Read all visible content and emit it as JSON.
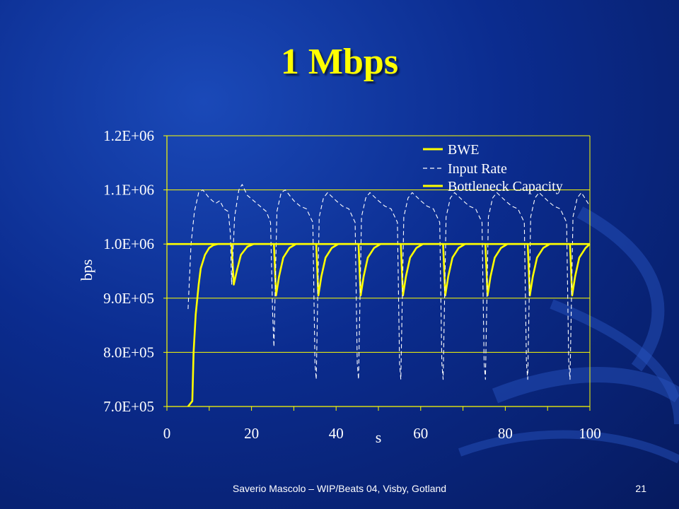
{
  "slide": {
    "title": "1 Mbps",
    "footer": "Saverio Mascolo  –   WIP/Beats 04,  Visby, Gotland",
    "page_number": "21"
  },
  "colors": {
    "background": "#0b2c8f",
    "title": "#ffff00",
    "grid": "#ffff00",
    "axis_text": "#ffffff",
    "bwe": "#ffff00",
    "input_rate": "#ffffff",
    "capacity": "#ffff00"
  },
  "chart_data": {
    "type": "line",
    "title": "",
    "xlabel": "s",
    "ylabel": "bps",
    "xlim": [
      0,
      100
    ],
    "ylim": [
      700000,
      1200000
    ],
    "x_ticks": [
      0,
      20,
      40,
      60,
      80,
      100
    ],
    "x_tick_labels": [
      "0",
      "20",
      "40",
      "60",
      "80",
      "100"
    ],
    "y_ticks": [
      700000,
      800000,
      900000,
      1000000,
      1100000,
      1200000
    ],
    "y_tick_labels": [
      "7.0E+05",
      "8.0E+05",
      "9.0E+05",
      "1.0E+06",
      "1.1E+06",
      "1.2E+06"
    ],
    "grid": "horizontal",
    "legend_position": "top-right",
    "series": [
      {
        "name": "BWE",
        "style": "solid",
        "points": [
          [
            5,
            700000
          ],
          [
            6,
            710000
          ],
          [
            6.3,
            800000
          ],
          [
            6.8,
            870000
          ],
          [
            7.5,
            925000
          ],
          [
            8,
            955000
          ],
          [
            9,
            980000
          ],
          [
            10,
            993000
          ],
          [
            11,
            998000
          ],
          [
            12,
            1000000
          ],
          [
            15.3,
            1000000
          ],
          [
            15.8,
            925000
          ],
          [
            16.5,
            950000
          ],
          [
            17.5,
            980000
          ],
          [
            19,
            995000
          ],
          [
            20.5,
            1000000
          ],
          [
            25.3,
            1000000
          ],
          [
            25.8,
            905000
          ],
          [
            26.5,
            940000
          ],
          [
            27.5,
            975000
          ],
          [
            29,
            993000
          ],
          [
            30.5,
            1000000
          ],
          [
            35.3,
            1000000
          ],
          [
            35.8,
            905000
          ],
          [
            36.5,
            940000
          ],
          [
            37.5,
            975000
          ],
          [
            39,
            993000
          ],
          [
            40.5,
            1000000
          ],
          [
            45.3,
            1000000
          ],
          [
            45.8,
            905000
          ],
          [
            46.5,
            940000
          ],
          [
            47.5,
            975000
          ],
          [
            49,
            993000
          ],
          [
            50.5,
            1000000
          ],
          [
            55.3,
            1000000
          ],
          [
            55.8,
            905000
          ],
          [
            56.5,
            940000
          ],
          [
            57.5,
            975000
          ],
          [
            59,
            993000
          ],
          [
            60.5,
            1000000
          ],
          [
            65.3,
            1000000
          ],
          [
            65.8,
            905000
          ],
          [
            66.5,
            940000
          ],
          [
            67.5,
            975000
          ],
          [
            69,
            993000
          ],
          [
            70.5,
            1000000
          ],
          [
            75.3,
            1000000
          ],
          [
            75.8,
            905000
          ],
          [
            76.5,
            940000
          ],
          [
            77.5,
            975000
          ],
          [
            79,
            993000
          ],
          [
            80.5,
            1000000
          ],
          [
            85.3,
            1000000
          ],
          [
            85.8,
            905000
          ],
          [
            86.5,
            940000
          ],
          [
            87.5,
            975000
          ],
          [
            89,
            993000
          ],
          [
            90.5,
            1000000
          ],
          [
            95.3,
            1000000
          ],
          [
            95.8,
            905000
          ],
          [
            96.5,
            940000
          ],
          [
            97.5,
            975000
          ],
          [
            99,
            993000
          ],
          [
            100,
            1000000
          ]
        ]
      },
      {
        "name": "Input Rate",
        "style": "dashed",
        "points": [
          [
            5,
            880000
          ],
          [
            5.7,
            1000000
          ],
          [
            6.5,
            1060000
          ],
          [
            7.5,
            1095000
          ],
          [
            8.5,
            1100000
          ],
          [
            10,
            1085000
          ],
          [
            11.5,
            1075000
          ],
          [
            12.5,
            1080000
          ],
          [
            13.5,
            1065000
          ],
          [
            14.5,
            1060000
          ],
          [
            15,
            1020000
          ],
          [
            15.3,
            925000
          ],
          [
            16,
            1050000
          ],
          [
            17,
            1100000
          ],
          [
            17.8,
            1110000
          ],
          [
            19,
            1090000
          ],
          [
            20.5,
            1080000
          ],
          [
            22,
            1070000
          ],
          [
            23.5,
            1060000
          ],
          [
            24.5,
            1040000
          ],
          [
            25,
            870000
          ],
          [
            25.3,
            810000
          ],
          [
            26,
            1060000
          ],
          [
            27,
            1095000
          ],
          [
            28,
            1100000
          ],
          [
            30,
            1080000
          ],
          [
            31.5,
            1070000
          ],
          [
            33,
            1065000
          ],
          [
            34.5,
            1040000
          ],
          [
            35,
            780000
          ],
          [
            35.3,
            750000
          ],
          [
            36,
            1050000
          ],
          [
            37,
            1085000
          ],
          [
            38,
            1095000
          ],
          [
            40,
            1080000
          ],
          [
            41.5,
            1070000
          ],
          [
            43,
            1065000
          ],
          [
            44.5,
            1040000
          ],
          [
            45,
            780000
          ],
          [
            45.3,
            750000
          ],
          [
            46,
            1050000
          ],
          [
            47,
            1085000
          ],
          [
            48,
            1095000
          ],
          [
            50,
            1080000
          ],
          [
            51.5,
            1070000
          ],
          [
            53,
            1065000
          ],
          [
            54.5,
            1040000
          ],
          [
            55,
            780000
          ],
          [
            55.3,
            750000
          ],
          [
            56,
            1050000
          ],
          [
            57,
            1085000
          ],
          [
            58,
            1095000
          ],
          [
            60,
            1080000
          ],
          [
            61.5,
            1070000
          ],
          [
            63,
            1065000
          ],
          [
            64.5,
            1040000
          ],
          [
            65,
            780000
          ],
          [
            65.3,
            750000
          ],
          [
            66,
            1050000
          ],
          [
            67,
            1085000
          ],
          [
            68,
            1095000
          ],
          [
            70,
            1080000
          ],
          [
            71.5,
            1070000
          ],
          [
            73,
            1065000
          ],
          [
            74.5,
            1040000
          ],
          [
            75,
            780000
          ],
          [
            75.3,
            750000
          ],
          [
            76,
            1050000
          ],
          [
            77,
            1085000
          ],
          [
            78,
            1095000
          ],
          [
            80,
            1080000
          ],
          [
            81.5,
            1070000
          ],
          [
            83,
            1065000
          ],
          [
            84.5,
            1040000
          ],
          [
            85,
            780000
          ],
          [
            85.3,
            750000
          ],
          [
            86,
            1050000
          ],
          [
            87,
            1085000
          ],
          [
            88,
            1095000
          ],
          [
            90,
            1080000
          ],
          [
            91.5,
            1070000
          ],
          [
            93,
            1065000
          ],
          [
            94.5,
            1040000
          ],
          [
            95,
            780000
          ],
          [
            95.3,
            750000
          ],
          [
            96,
            1050000
          ],
          [
            97,
            1085000
          ],
          [
            98,
            1095000
          ],
          [
            100,
            1070000
          ]
        ]
      },
      {
        "name": "Bottleneck Capacity",
        "style": "solid",
        "points": [
          [
            0,
            1000000
          ],
          [
            100,
            1000000
          ]
        ]
      }
    ]
  }
}
